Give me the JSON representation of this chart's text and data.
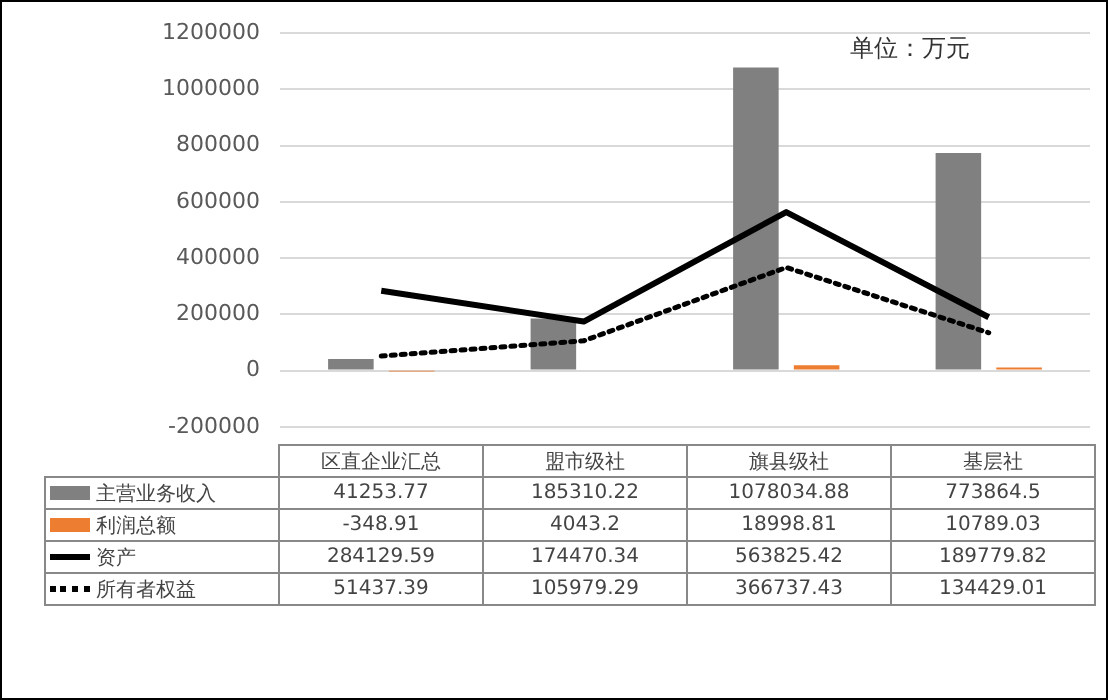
{
  "chart_data": {
    "type": "bar",
    "categories": [
      "区直企业汇总",
      "盟市级社",
      "旗县级社",
      "基层社"
    ],
    "series": [
      {
        "name": "主营业务收入",
        "color": "#808080",
        "values": [
          41253.77,
          185310.22,
          1078034.88,
          773864.5
        ]
      },
      {
        "name": "利润总额",
        "color": "#ed7d31",
        "values": [
          -348.91,
          4043.2,
          18998.81,
          10789.03
        ]
      },
      {
        "name": "资产",
        "type": "line",
        "color": "#000000",
        "line_style": "solid",
        "values": [
          284129.59,
          174470.34,
          563825.42,
          189779.82
        ]
      },
      {
        "name": "所有者权益",
        "type": "line",
        "color": "#000000",
        "line_style": "dotted",
        "values": [
          51437.39,
          105979.29,
          366737.43,
          134429.01
        ]
      }
    ],
    "ylim": [
      -200000,
      1200000
    ],
    "yticks": [
      -200000,
      0,
      200000,
      400000,
      600000,
      800000,
      1000000,
      1200000
    ],
    "grid": "y",
    "marker": "none",
    "legend": "bottom",
    "data_labels": true,
    "annotations": [
      "单位：万元"
    ]
  }
}
